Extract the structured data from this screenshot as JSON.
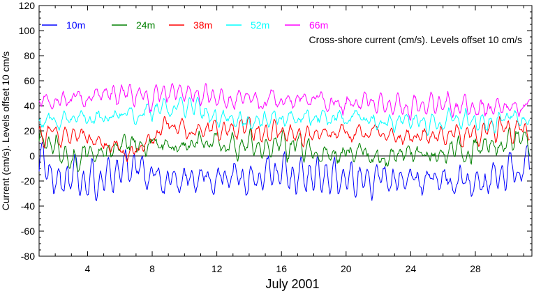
{
  "chart_data": {
    "type": "line",
    "title": "",
    "annotation": "Cross-shore current (cm/s). Levels offset 10 cm/s",
    "xlabel": "July 2001",
    "ylabel": "Current (cm/s). Levels offset 10 cm/s",
    "xlim": [
      1,
      31.5
    ],
    "ylim": [
      -80,
      120
    ],
    "xticks": [
      4,
      8,
      12,
      16,
      20,
      24,
      28
    ],
    "yticks": [
      -80,
      -60,
      -40,
      -20,
      0,
      20,
      40,
      60,
      80,
      100,
      120
    ],
    "zero_line": true,
    "grid": false,
    "legend_position": "top-left",
    "series": [
      {
        "name": "10m",
        "color": "#0000ff",
        "mean": -8,
        "amplitude": 11,
        "noise": 4,
        "key_points": [
          [
            1.3,
            -6
          ],
          [
            2.2,
            -25
          ],
          [
            4.5,
            -30
          ],
          [
            6.6,
            -5
          ],
          [
            8.6,
            -28
          ],
          [
            11.2,
            -24
          ],
          [
            15.5,
            -20
          ],
          [
            23.5,
            -28
          ],
          [
            28,
            -29
          ],
          [
            31.3,
            -8
          ]
        ]
      },
      {
        "name": "24m",
        "color": "#008000",
        "mean": 8,
        "amplitude": 6,
        "noise": 4,
        "key_points": [
          [
            1.5,
            8
          ],
          [
            3.0,
            -6
          ],
          [
            6.5,
            6
          ],
          [
            12,
            10
          ],
          [
            17,
            5
          ],
          [
            22.5,
            -10
          ],
          [
            28,
            8
          ],
          [
            30.5,
            18
          ],
          [
            31.3,
            13
          ]
        ]
      },
      {
        "name": "38m",
        "color": "#ff0000",
        "mean": 18,
        "amplitude": 6,
        "noise": 3,
        "key_points": [
          [
            1.5,
            16
          ],
          [
            6.8,
            -5
          ],
          [
            9.0,
            26
          ],
          [
            12.5,
            24
          ],
          [
            16,
            16
          ],
          [
            20,
            20
          ],
          [
            25,
            10
          ],
          [
            30,
            24
          ],
          [
            31.3,
            18
          ]
        ]
      },
      {
        "name": "52m",
        "color": "#00ffff",
        "mean": 29,
        "amplitude": 5,
        "noise": 3,
        "key_points": [
          [
            1.5,
            26
          ],
          [
            4,
            30
          ],
          [
            9.8,
            45
          ],
          [
            12,
            32
          ],
          [
            18,
            30
          ],
          [
            22,
            28
          ],
          [
            27,
            25
          ],
          [
            31.3,
            30
          ]
        ]
      },
      {
        "name": "66m",
        "color": "#ff00ff",
        "mean": 41,
        "amplitude": 6,
        "noise": 3,
        "key_points": [
          [
            1.2,
            42
          ],
          [
            4,
            52
          ],
          [
            9.8,
            57
          ],
          [
            12.5,
            50
          ],
          [
            16,
            46
          ],
          [
            22,
            44
          ],
          [
            26,
            38
          ],
          [
            31.3,
            35
          ]
        ]
      }
    ]
  }
}
